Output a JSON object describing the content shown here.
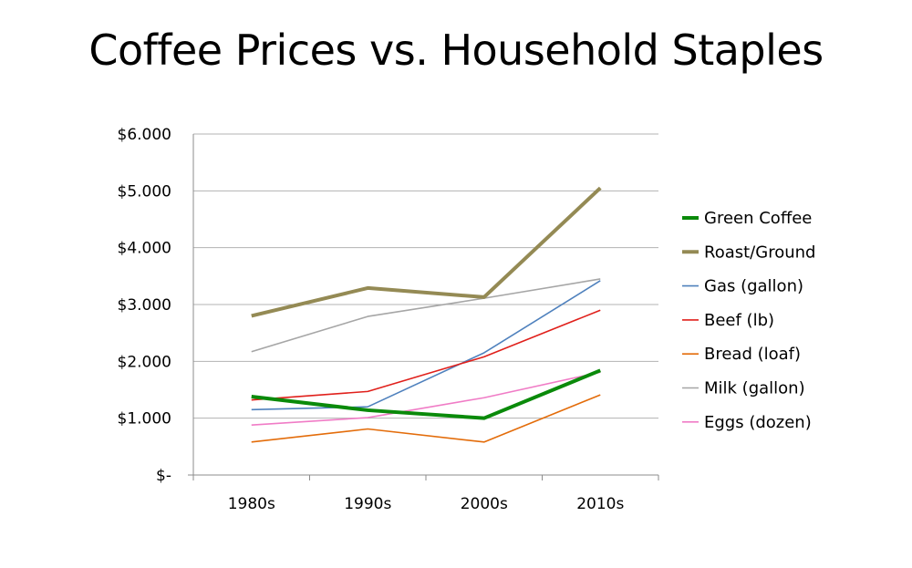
{
  "chart_data": {
    "type": "line",
    "title": "Coffee Prices vs. Household Staples",
    "categories": [
      "1980s",
      "1990s",
      "2000s",
      "2010s"
    ],
    "y_tick_labels": [
      "$-",
      "$1.000",
      "$2.000",
      "$3.000",
      "$4.000",
      "$5.000",
      "$6.000"
    ],
    "ylim": [
      0,
      6
    ],
    "grid": true,
    "legend_position": "right",
    "series": [
      {
        "name": "Green Coffee",
        "color": "#0a8a0a",
        "width": "thick",
        "values": [
          1.38,
          1.14,
          1.0,
          1.84
        ]
      },
      {
        "name": "Roast/Ground",
        "color": "#948a54",
        "width": "thick",
        "values": [
          2.8,
          3.29,
          3.13,
          5.05
        ]
      },
      {
        "name": "Gas (gallon)",
        "color": "#4f81bd",
        "width": "thin",
        "values": [
          1.15,
          1.2,
          2.15,
          3.42
        ]
      },
      {
        "name": "Beef (lb)",
        "color": "#e0201b",
        "width": "thin",
        "values": [
          1.32,
          1.47,
          2.08,
          2.9
        ]
      },
      {
        "name": "Bread (loaf)",
        "color": "#e36c0a",
        "width": "thin",
        "values": [
          0.58,
          0.81,
          0.58,
          1.41
        ]
      },
      {
        "name": "Milk (gallon)",
        "color": "#a6a6a6",
        "width": "thin",
        "values": [
          2.17,
          2.79,
          3.11,
          3.45
        ]
      },
      {
        "name": "Eggs (dozen)",
        "color": "#f07cc6",
        "width": "thin",
        "values": [
          0.88,
          1.01,
          1.36,
          1.81
        ]
      }
    ]
  }
}
